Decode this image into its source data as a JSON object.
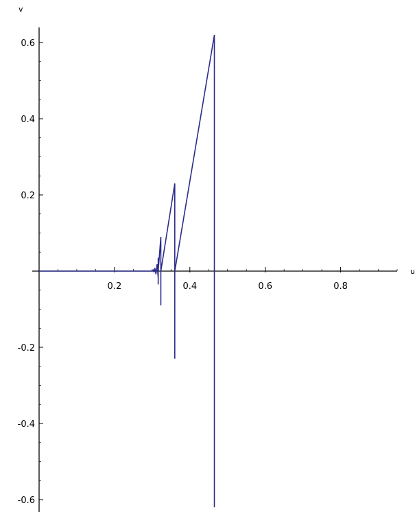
{
  "chart_data": {
    "type": "line",
    "title": "",
    "xlabel": "u",
    "ylabel": "v",
    "xlim": [
      0,
      0.95
    ],
    "ylim": [
      -0.63,
      0.63
    ],
    "grid": false,
    "x_ticks": [
      0.2,
      0.4,
      0.6,
      0.8
    ],
    "x_tick_labels": [
      "0.2",
      "0.4",
      "0.6",
      "0.8"
    ],
    "y_ticks": [
      0.6,
      0.4,
      0.2,
      -0.2,
      -0.4,
      -0.6
    ],
    "y_tick_labels": [
      "0.6",
      "0.4",
      "0.2",
      "-0.2",
      "-0.4",
      "-0.6"
    ],
    "series_color": "#2b2b8c",
    "series": [
      {
        "x": [
          0,
          0.3,
          0.303,
          0.305,
          0.307,
          0.31,
          0.313,
          0.316,
          0.316,
          0.316,
          0.316,
          0.316,
          0.323,
          0.323,
          0.323,
          0.323,
          0.36,
          0.36,
          0.36,
          0.36,
          0.465,
          0.465,
          0.465
        ],
        "y": [
          0,
          0,
          0.003,
          -0.003,
          0.008,
          -0.008,
          0.018,
          -0.018,
          0.035,
          -0.035,
          0.0,
          0.0,
          0.09,
          -0.09,
          0.0,
          0.0,
          0.23,
          -0.23,
          0.0,
          0.0,
          0.62,
          -0.62,
          0.0
        ]
      }
    ]
  }
}
